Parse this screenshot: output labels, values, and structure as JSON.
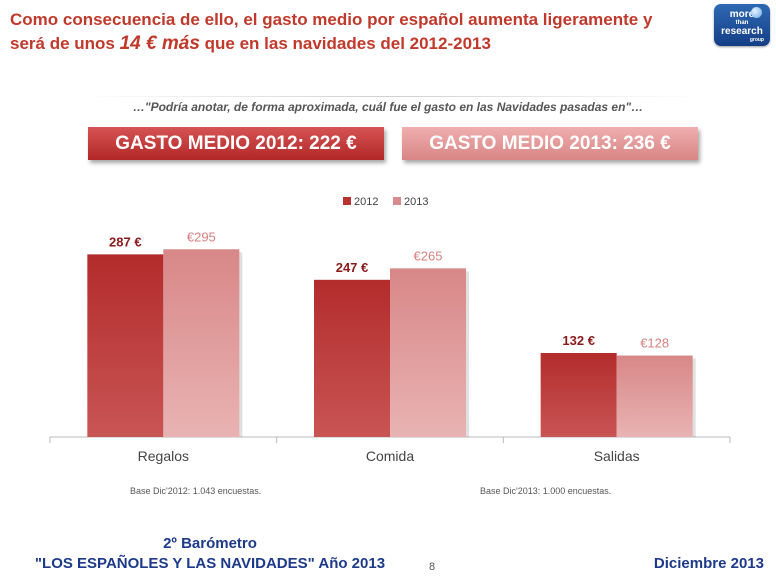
{
  "header": {
    "line1": "Como consecuencia de ello, el gasto medio por español aumenta ligeramente y",
    "line2_pre": "será de unos ",
    "line2_em": "14 € más",
    "line2_post": " que en las navidades del 2012-2013"
  },
  "logo": {
    "line1": "more",
    "line2": "than",
    "line3": "research",
    "line4": "group"
  },
  "question": "…\"Podría anotar, de forma aproximada, cuál fue el gasto en las Navidades pasadas en\"…",
  "banners": {
    "b2012": "GASTO MEDIO 2012: 222 €",
    "b2013": "GASTO MEDIO 2013: 236 €"
  },
  "colors": {
    "s2012": "#b83232",
    "s2013": "#d98b8b",
    "label2012": "#8b1a1a",
    "label2013": "#d77f7f"
  },
  "chart_data": {
    "type": "bar",
    "categories": [
      "Regalos",
      "Comida",
      "Salidas"
    ],
    "series": [
      {
        "name": "2012",
        "values": [
          287,
          247,
          132
        ],
        "labels": [
          "287 €",
          "247 €",
          "132 €"
        ]
      },
      {
        "name": "2013",
        "values": [
          295,
          265,
          128
        ],
        "labels": [
          "€295",
          "€265",
          "€128"
        ]
      }
    ],
    "legend": "top-center",
    "ylim": [
      0,
      330
    ],
    "grid": false
  },
  "notes": {
    "base2012": "Base Dic'2012: 1.043 encuestas.",
    "base2013": "Base Dic'2013: 1.000 encuestas."
  },
  "footer": {
    "line1": "2º Barómetro",
    "line2": "\"LOS ESPAÑOLES Y LAS NAVIDADES\"  Año 2013",
    "page": "8",
    "date": "Diciembre 2013"
  }
}
